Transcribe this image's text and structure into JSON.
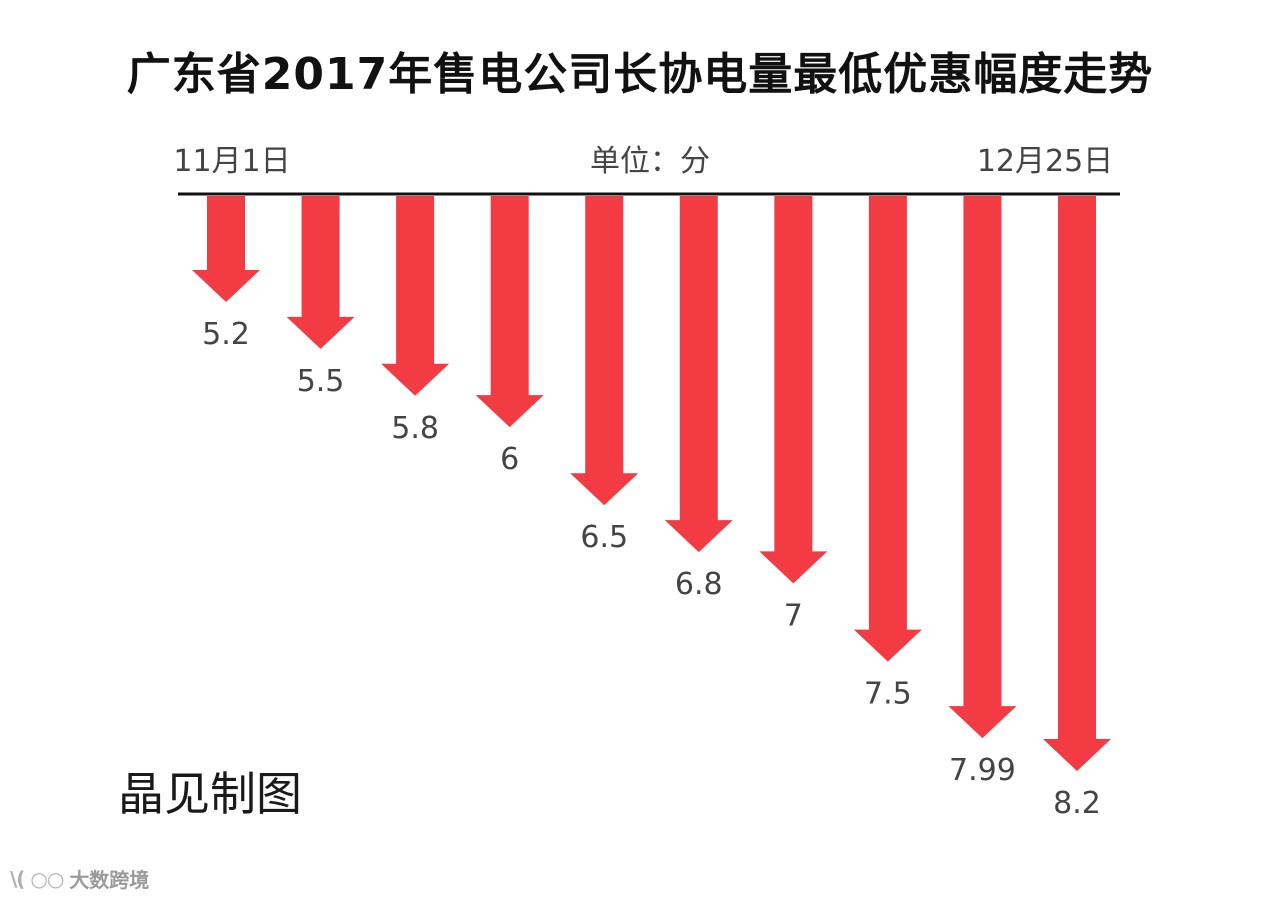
{
  "chart_data": {
    "type": "bar",
    "orientation": "downward-arrows",
    "title": "广东省2017年售电公司长协电量最低优惠幅度走势",
    "unit_label": "单位：分",
    "start_date_label": "11月1日",
    "end_date_label": "12月25日",
    "values": [
      5.2,
      5.5,
      5.8,
      6,
      6.5,
      6.8,
      7,
      7.5,
      7.99,
      8.2
    ],
    "value_labels": [
      "5.2",
      "5.5",
      "5.8",
      "6",
      "6.5",
      "6.8",
      "7",
      "7.5",
      "7.99",
      "8.2"
    ],
    "bar_color": "#f23b43",
    "axis_color": "#111111"
  },
  "credit": "晶见制图",
  "watermark": {
    "logo_text": "\\( ○○",
    "name": "大数跨境"
  }
}
